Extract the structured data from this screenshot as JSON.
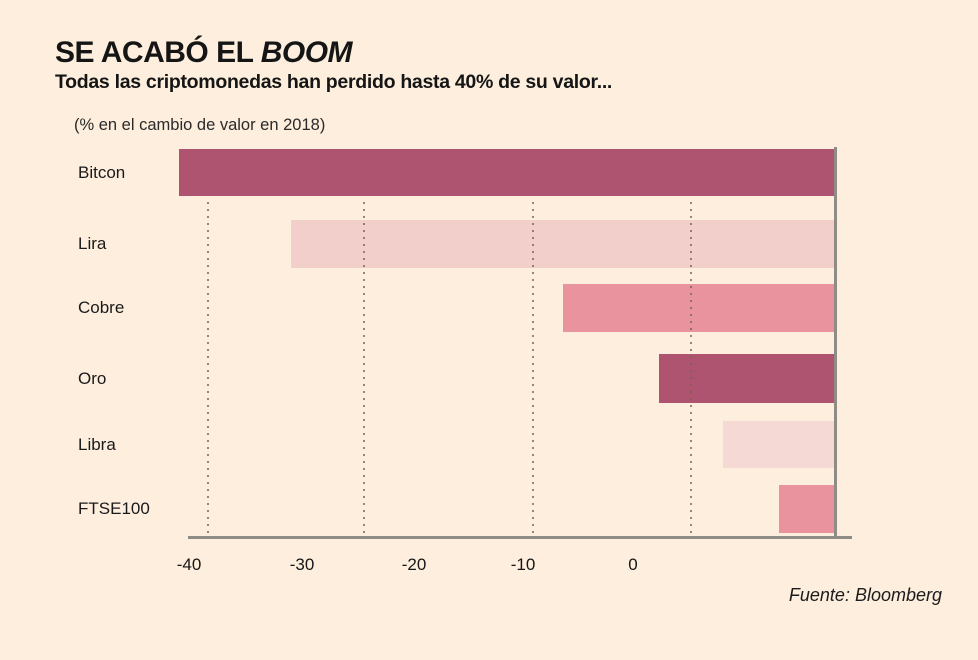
{
  "title": {
    "prefix": "SE ACABÓ EL ",
    "emphasis": "BOOM"
  },
  "subtitle": "Todas las criptomonedas han perdido hasta 40% de su valor...",
  "axis_note": "(% en el cambio de valor en 2018)",
  "source": "Fuente: Bloomberg",
  "colors": {
    "background": "#fdeedd",
    "dark_rose": "#ae5470",
    "medium_pink": "#e8939e",
    "pale_pink": "#f2cfca",
    "lightest_pink": "#f5d9d5",
    "axis_gray": "#8e8c84",
    "text": "#151515"
  },
  "chart_data": {
    "type": "bar",
    "orientation": "horizontal",
    "title": "SE ACABÓ EL BOOM",
    "subtitle": "Todas las criptomonedas han perdido hasta 40% de su valor...",
    "unit_note": "(% en el cambio de valor en 2018)",
    "categories": [
      "Bitcon",
      "Lira",
      "Cobre",
      "Oro",
      "Libra",
      "FTSE100"
    ],
    "values": [
      -41,
      -34,
      -17,
      -11,
      -7,
      -3.5
    ],
    "bar_colors": [
      "#ae5470",
      "#f2cfca",
      "#e8939e",
      "#ae5470",
      "#f5d9d5",
      "#e8939e"
    ],
    "x_ticks": [
      -40,
      -30,
      -20,
      -10,
      0
    ],
    "xlim": [
      -41.5,
      1
    ],
    "xlabel": "",
    "ylabel": "",
    "grid": "dotted-vertical",
    "legend": "none",
    "source": "Fuente: Bloomberg"
  }
}
